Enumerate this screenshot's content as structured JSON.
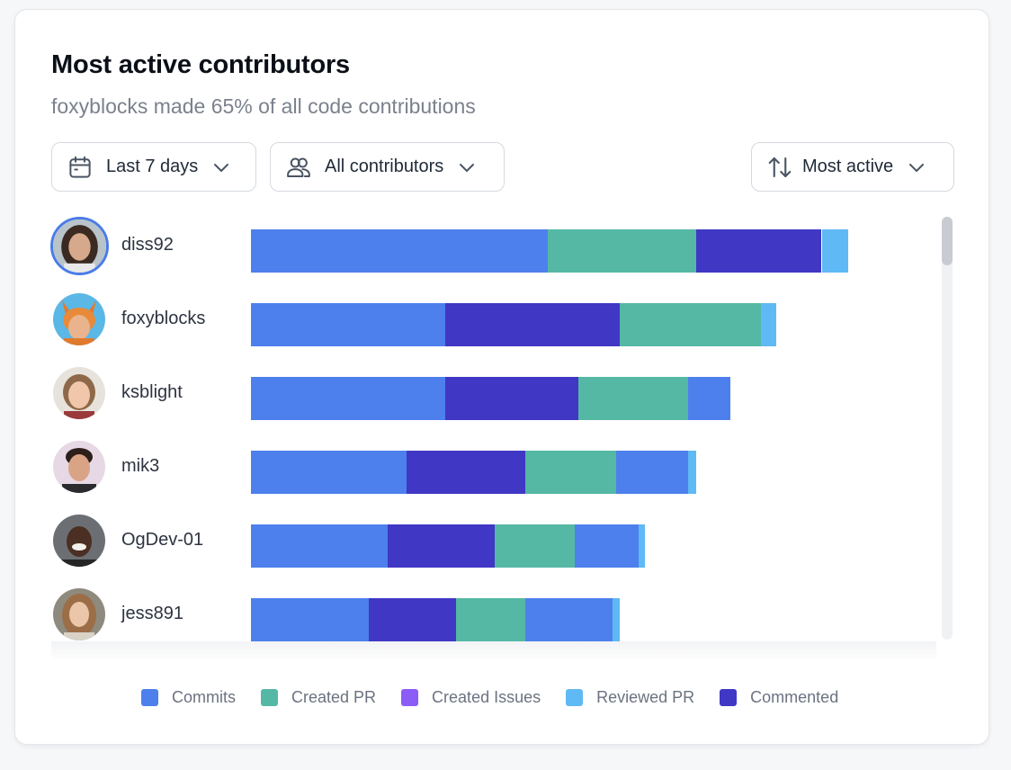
{
  "header": {
    "title": "Most active contributors",
    "subtitle": "foxyblocks made 65% of all code contributions"
  },
  "filters": {
    "date_label": "Last 7 days",
    "contributors_label": "All contributors",
    "sort_label": "Most active"
  },
  "colors": {
    "commits": "#4d80ec",
    "created_pr": "#54b8a5",
    "created_issues": "#8b5cf6",
    "reviewed_pr": "#5fb9f4",
    "commented": "#4037c5"
  },
  "icons": {
    "date": "calendar-icon",
    "contributors": "users-icon",
    "sort": "sort-arrows-icon",
    "chevron": "chevron-down-icon"
  },
  "chart_data": {
    "type": "bar",
    "orientation": "horizontal",
    "stacked": true,
    "title": "Most active contributors",
    "categories": [
      "diss92",
      "foxyblocks",
      "ksblight",
      "mik3",
      "OgDev-01",
      "jess891"
    ],
    "xlim": [
      0,
      100
    ],
    "selected_category": "diss92",
    "segments": [
      [
        {
          "series": "commits",
          "value": 39
        },
        {
          "series": "created_pr",
          "value": 19.5
        },
        {
          "series": "commented",
          "value": 16.5
        },
        {
          "series": "reviewed_pr",
          "value": 3.5
        }
      ],
      [
        {
          "series": "commits",
          "value": 25.5
        },
        {
          "series": "commented",
          "value": 23
        },
        {
          "series": "created_pr",
          "value": 18.5
        },
        {
          "series": "reviewed_pr",
          "value": 2
        }
      ],
      [
        {
          "series": "commits",
          "value": 25.5
        },
        {
          "series": "commented",
          "value": 17.5
        },
        {
          "series": "created_pr",
          "value": 14.5
        },
        {
          "series": "commits",
          "value": 5.5
        }
      ],
      [
        {
          "series": "commits",
          "value": 20.5
        },
        {
          "series": "commented",
          "value": 15.5
        },
        {
          "series": "created_pr",
          "value": 12
        },
        {
          "series": "commits",
          "value": 9.5
        },
        {
          "series": "reviewed_pr",
          "value": 1
        }
      ],
      [
        {
          "series": "commits",
          "value": 18
        },
        {
          "series": "commented",
          "value": 14
        },
        {
          "series": "created_pr",
          "value": 10.5
        },
        {
          "series": "commits",
          "value": 8.5
        },
        {
          "series": "reviewed_pr",
          "value": 0.8
        }
      ],
      [
        {
          "series": "commits",
          "value": 15.5
        },
        {
          "series": "commented",
          "value": 11.5
        },
        {
          "series": "created_pr",
          "value": 9
        },
        {
          "series": "commits",
          "value": 11.5
        },
        {
          "series": "reviewed_pr",
          "value": 1
        }
      ]
    ],
    "legend": [
      {
        "key": "commits",
        "label": "Commits"
      },
      {
        "key": "created_pr",
        "label": "Created PR"
      },
      {
        "key": "created_issues",
        "label": "Created Issues"
      },
      {
        "key": "reviewed_pr",
        "label": "Reviewed PR"
      },
      {
        "key": "commented",
        "label": "Commented"
      }
    ],
    "legend_position": "bottom"
  }
}
